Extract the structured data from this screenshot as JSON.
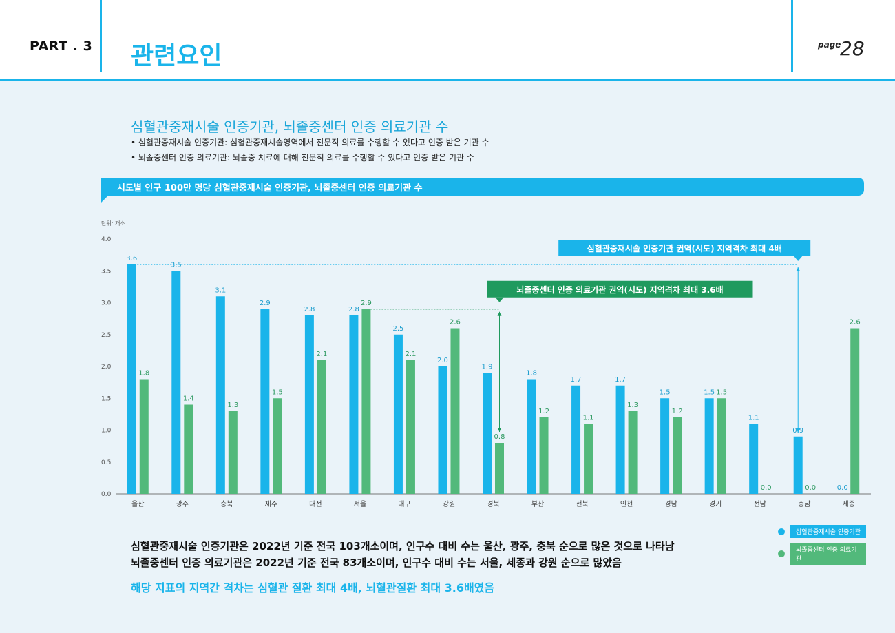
{
  "header": {
    "part": "PART . 3",
    "section_title": "관련요인",
    "page_label": "page",
    "page_number": "28"
  },
  "intro": {
    "subtitle": "심혈관중재시술 인증기관, 뇌졸중센터 인증 의료기관 수",
    "bullets": [
      "• 심혈관중재시술 인증기관: 심혈관중재시술영역에서 전문적 의료를 수행할 수 있다고 인증 받은 기관 수",
      "• 뇌졸중센터 인증 의료기관: 뇌졸중 치료에 대해 전문적 의료를 수행할 수 있다고 인증 받은 기관 수"
    ]
  },
  "banner": {
    "text": "시도별 인구 100만 명당 심혈관중재시술 인증기관, 뇌졸중센터 인증 의료기관 수"
  },
  "chart_data": {
    "type": "bar",
    "unit_label": "단위: 개소",
    "categories": [
      "울산",
      "광주",
      "충북",
      "제주",
      "대전",
      "서울",
      "대구",
      "강원",
      "경북",
      "부산",
      "전북",
      "인천",
      "경남",
      "경기",
      "전남",
      "충남",
      "세종"
    ],
    "series": [
      {
        "name": "심혈관중재시술 인증기관",
        "color": "#1ab4ea",
        "values": [
          3.6,
          3.5,
          3.1,
          2.9,
          2.8,
          2.8,
          2.5,
          2.0,
          1.9,
          1.8,
          1.7,
          1.7,
          1.5,
          1.5,
          1.1,
          0.9,
          0.0
        ],
        "labels": [
          "3.6",
          "3.5",
          "3.1",
          "2.9",
          "2.8",
          "2.8",
          "2.5",
          "2.0",
          "1.9",
          "1.8",
          "1.7",
          "1.7",
          "1.5",
          "1.5",
          "1.1",
          "0.9",
          "0.0"
        ]
      },
      {
        "name": "뇌졸중센터 인증 의료기관",
        "color": "#52b97b",
        "values": [
          1.8,
          1.4,
          1.3,
          1.5,
          2.1,
          2.9,
          2.1,
          2.6,
          0.8,
          1.2,
          1.1,
          1.3,
          1.2,
          1.5,
          0.0,
          0.0,
          2.6
        ],
        "labels": [
          "1.8",
          "1.4",
          "1.3",
          "1.5",
          "2.1",
          "2.9",
          "2.1",
          "2.6",
          "0.8",
          "1.2",
          "1.1",
          "1.3",
          "1.2",
          "1.5",
          "0.0",
          "0.0",
          "2.6"
        ]
      }
    ],
    "yticks": [
      "0.0",
      "0.5",
      "1.0",
      "1.5",
      "2.0",
      "2.5",
      "3.0",
      "3.5",
      "4.0"
    ],
    "ylim": [
      0,
      4.0
    ],
    "grid": false,
    "legend_position": "bottom-right",
    "annotations": [
      {
        "text": "심혈관중재시술 인증기관 권역(시도) 지역격차 최대 4배",
        "color": "#1ab4ea",
        "from_value": 3.6,
        "to_value": 0.9,
        "from_category": "울산",
        "to_category": "충남"
      },
      {
        "text": "뇌졸중센터 인증 의료기관 권역(시도) 지역격차 최대 3.6배",
        "color": "#1f9a5e",
        "from_value": 2.9,
        "to_value": 0.8,
        "from_category": "서울",
        "to_category": "경북"
      }
    ]
  },
  "findings": {
    "line1": "심혈관중재시술 인증기관은 2022년 기준 전국 103개소이며, 인구수 대비 수는 울산, 광주, 충북 순으로 많은 것으로 나타남",
    "line2": "뇌졸중센터 인증 의료기관은 2022년 기준 전국 83개소이며, 인구수 대비 수는 서울, 세종과 강원 순으로 많았음",
    "highlight": "해당 지표의 지역간 격차는 심혈관 질환 최대 4배, 뇌혈관질환 최대 3.6배였음"
  }
}
